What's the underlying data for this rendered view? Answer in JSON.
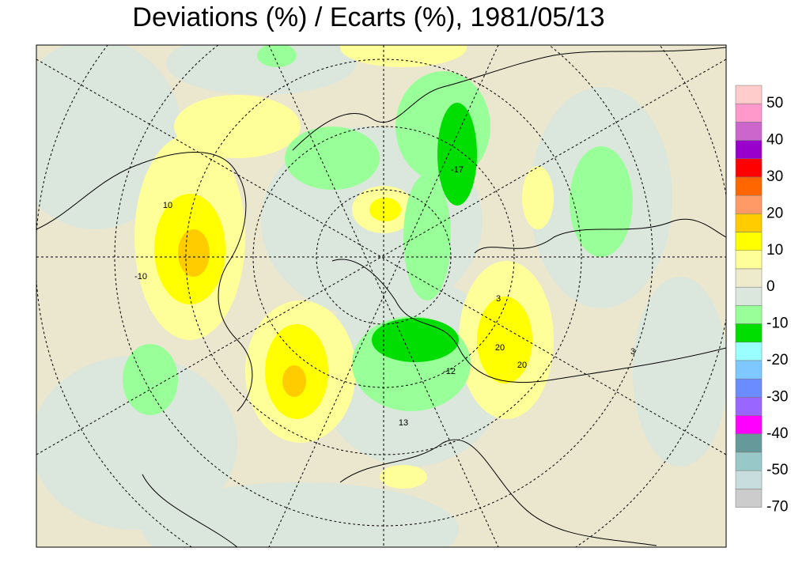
{
  "title": "Deviations (%) / Ecarts (%), 1981/05/13",
  "legend": {
    "colors": [
      "#ffcccc",
      "#ff99cc",
      "#cc66cc",
      "#9900cc",
      "#ff0000",
      "#ff6600",
      "#ff9966",
      "#ffcc00",
      "#ffff00",
      "#ffff99",
      "#eeeacc",
      "#dbe6dc",
      "#99ff99",
      "#00dd00",
      "#99ffff",
      "#7fc8ff",
      "#6a8cff",
      "#9966ff",
      "#ff00ff",
      "#669999",
      "#99c8c8",
      "#c8dede",
      "#cccccc"
    ],
    "labels": [
      "50",
      "40",
      "30",
      "20",
      "10",
      "0",
      "-10",
      "-20",
      "-30",
      "-40",
      "-50",
      "-70"
    ]
  },
  "map_labels": [
    "10",
    "-10",
    "20",
    "-17",
    "3",
    "-12",
    "3",
    "20",
    "13"
  ]
}
